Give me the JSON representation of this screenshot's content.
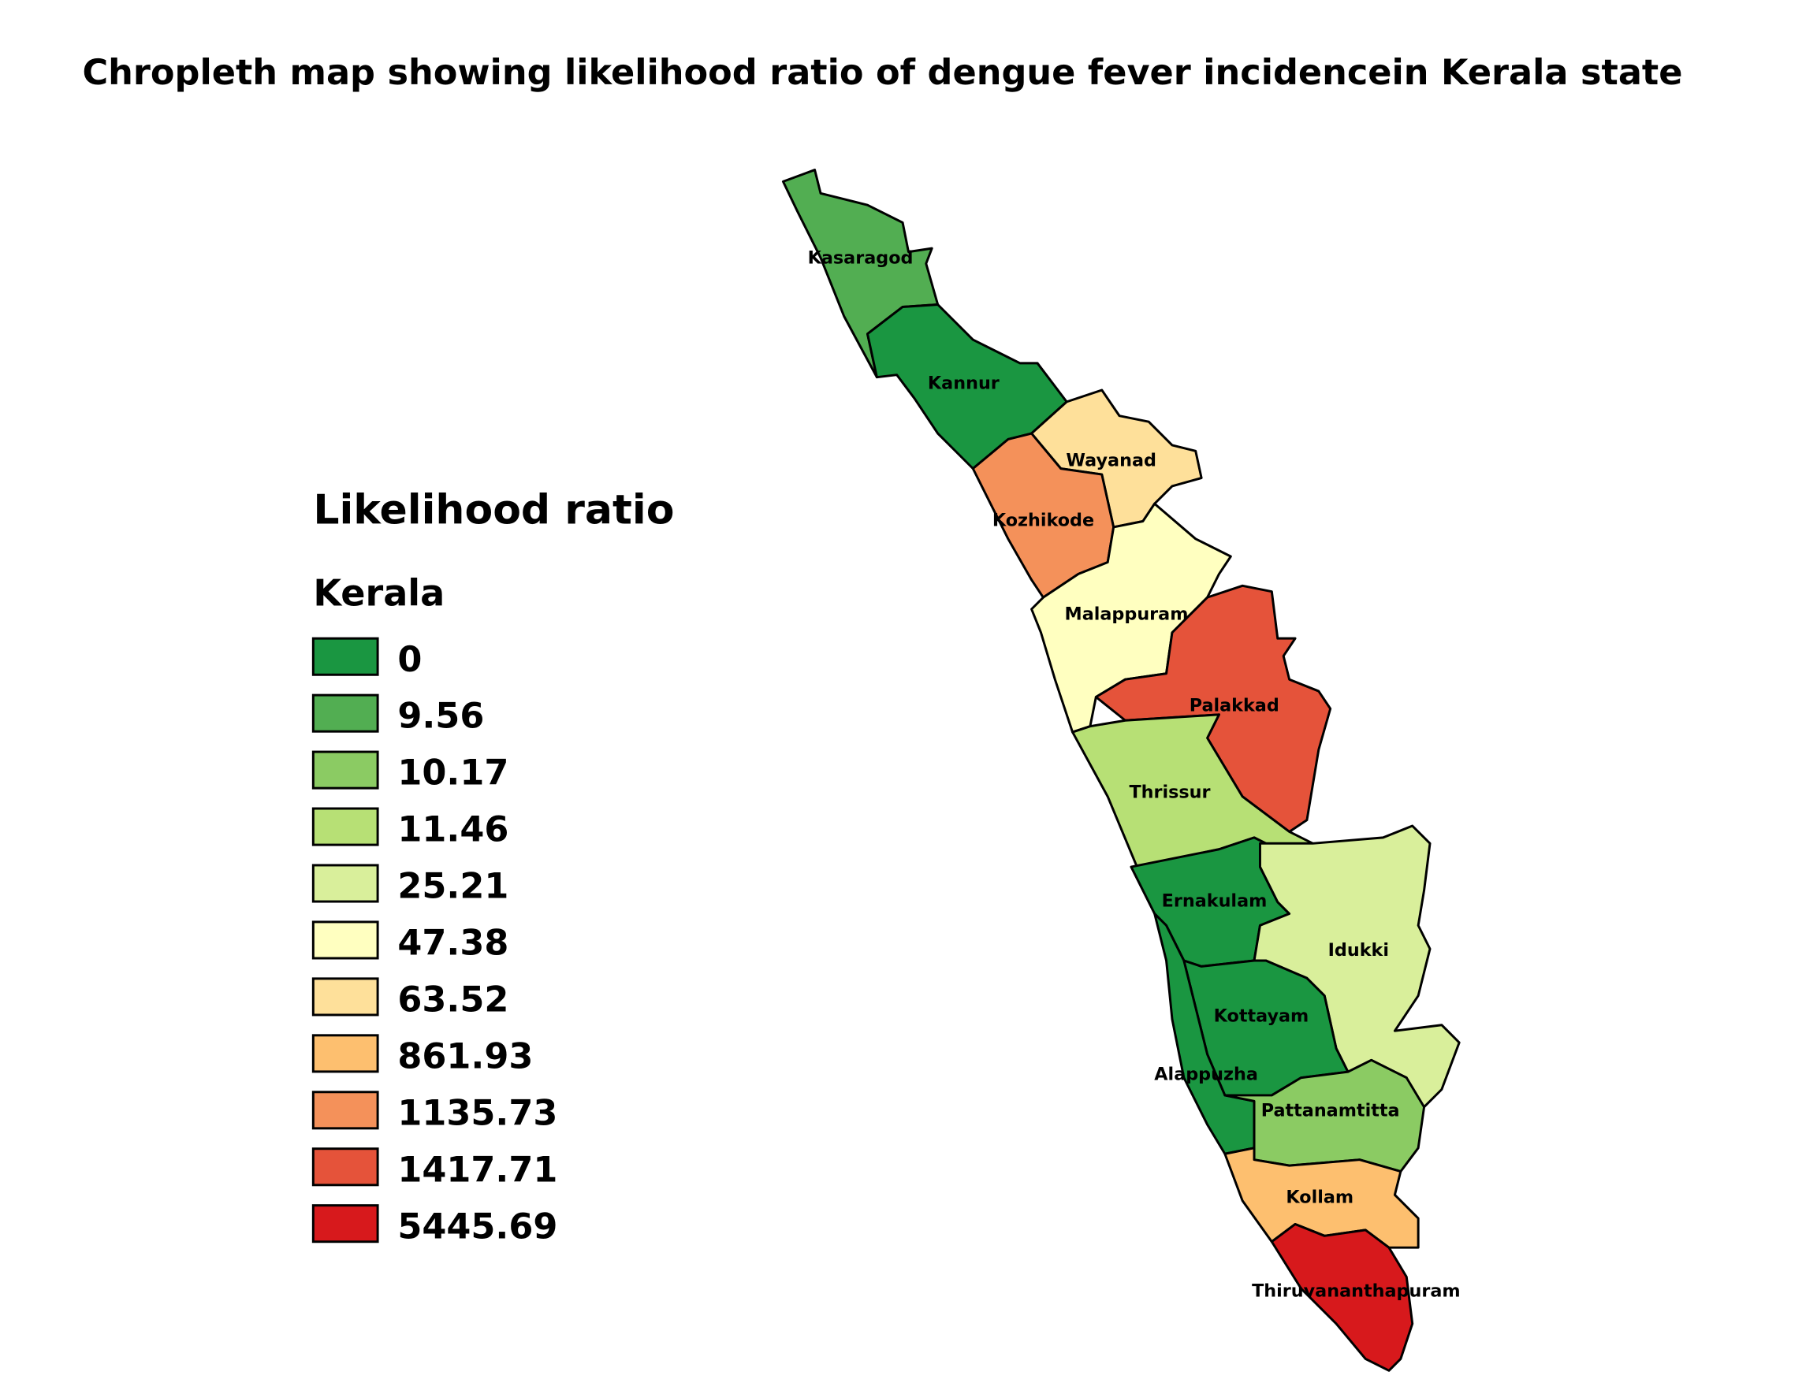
{
  "title": "Chropleth map showing likelihood ratio of dengue fever incidencein Kerala state",
  "legend": {
    "title": "Likelihood ratio",
    "layer": "Kerala",
    "classes": [
      {
        "label": "0",
        "value": 0,
        "color": "#1a9641"
      },
      {
        "label": "9.56",
        "value": 9.56,
        "color": "#52ae52"
      },
      {
        "label": "10.17",
        "value": 10.17,
        "color": "#8bcb63"
      },
      {
        "label": "11.46",
        "value": 11.46,
        "color": "#b7e075"
      },
      {
        "label": "25.21",
        "value": 25.21,
        "color": "#d9ef9b"
      },
      {
        "label": "47.38",
        "value": 47.38,
        "color": "#ffffc0"
      },
      {
        "label": "63.52",
        "value": 63.52,
        "color": "#fee09a"
      },
      {
        "label": "861.93",
        "value": 861.93,
        "color": "#fdbf6f"
      },
      {
        "label": "1135.73",
        "value": 1135.73,
        "color": "#f4915a"
      },
      {
        "label": "1417.71",
        "value": 1417.71,
        "color": "#e5533a"
      },
      {
        "label": "5445.69",
        "value": 5445.69,
        "color": "#d7191c"
      }
    ]
  },
  "districts": [
    {
      "name": "Kasaragod",
      "value": 9.56
    },
    {
      "name": "Kannur",
      "value": 0
    },
    {
      "name": "Wayanad",
      "value": 63.52
    },
    {
      "name": "Kozhikode",
      "value": 1135.73
    },
    {
      "name": "Malappuram",
      "value": 47.38
    },
    {
      "name": "Palakkad",
      "value": 1417.71
    },
    {
      "name": "Thrissur",
      "value": 11.46
    },
    {
      "name": "Ernakulam",
      "value": 0
    },
    {
      "name": "Idukki",
      "value": 25.21
    },
    {
      "name": "Kottayam",
      "value": 0
    },
    {
      "name": "Alappuzha",
      "value": 0
    },
    {
      "name": "Pattanamtitta",
      "value": 10.17
    },
    {
      "name": "Kollam",
      "value": 861.93
    },
    {
      "name": "Thiruvananthapuram",
      "value": 5445.69
    }
  ]
}
